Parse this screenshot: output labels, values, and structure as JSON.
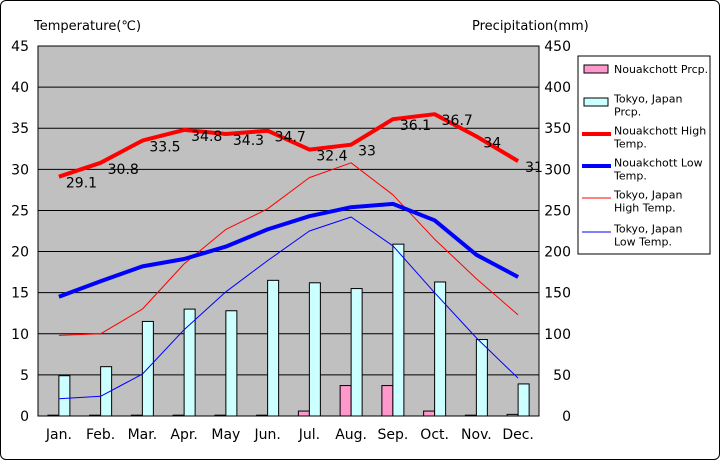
{
  "chart_data": {
    "type": "bar+line",
    "categories": [
      "Jan.",
      "Feb.",
      "Mar.",
      "Apr.",
      "May",
      "Jun.",
      "Jul.",
      "Aug.",
      "Sep.",
      "Oct.",
      "Nov.",
      "Dec."
    ],
    "ylabel_left": "Temperature(℃)",
    "ylabel_right": "Precipitation(mm)",
    "ylim_left": [
      0,
      45
    ],
    "ylim_right": [
      0,
      450
    ],
    "yticks_left": [
      "0",
      "5",
      "10",
      "15",
      "20",
      "25",
      "30",
      "35",
      "40",
      "45"
    ],
    "yticks_right": [
      "0",
      "50",
      "100",
      "150",
      "200",
      "250",
      "300",
      "350",
      "400",
      "450"
    ],
    "grid": true,
    "legend_position": "right",
    "bar_series": [
      {
        "name": "Nouakchott Prcp.",
        "axis": "right",
        "color": "#ff99cc",
        "values": [
          1,
          1,
          1,
          1,
          1,
          1,
          6,
          37,
          37,
          6,
          1,
          2
        ]
      },
      {
        "name": "Tokyo, Japan Prcp.",
        "axis": "right",
        "color": "#ccffff",
        "values": [
          49,
          60,
          115,
          130,
          128,
          165,
          162,
          155,
          209,
          163,
          93,
          39
        ]
      }
    ],
    "line_series": [
      {
        "name": "Nouakchott High Temp.",
        "axis": "left",
        "color": "#ff0000",
        "width": 4,
        "labeled": true,
        "values": [
          29.1,
          30.8,
          33.5,
          34.8,
          34.3,
          34.7,
          32.4,
          33,
          36.1,
          36.7,
          34,
          31
        ],
        "labels": [
          "29.1",
          "30.8",
          "33.5",
          "34.8",
          "34.3",
          "34.7",
          "32.4",
          "33",
          "36.1",
          "36.7",
          "34",
          "31"
        ]
      },
      {
        "name": "Nouakchott Low Temp.",
        "axis": "left",
        "color": "#0000ff",
        "width": 4,
        "labeled": false,
        "values": [
          14.5,
          16.4,
          18.2,
          19.1,
          20.6,
          22.7,
          24.3,
          25.4,
          25.8,
          23.8,
          19.6,
          16.9
        ]
      },
      {
        "name": "Tokyo, Japan High Temp.",
        "axis": "left",
        "color": "#ff0000",
        "width": 1,
        "labeled": false,
        "values": [
          9.8,
          10,
          13,
          18.5,
          22.7,
          25.2,
          29,
          30.8,
          26.9,
          21.5,
          16.7,
          12.3
        ]
      },
      {
        "name": "Tokyo, Japan Low Temp.",
        "axis": "left",
        "color": "#0000ff",
        "width": 1,
        "labeled": false,
        "values": [
          2.1,
          2.4,
          5.1,
          10.5,
          15.1,
          18.9,
          22.5,
          24.2,
          20.7,
          15,
          9.5,
          4.6
        ]
      }
    ],
    "legend": [
      {
        "text": [
          "Nouakchott Prcp."
        ],
        "kind": "bar",
        "color": "#ff99cc"
      },
      {
        "text": [
          "Tokyo, Japan",
          "Prcp."
        ],
        "kind": "bar",
        "color": "#ccffff"
      },
      {
        "text": [
          "Nouakchott High",
          "Temp."
        ],
        "kind": "line",
        "color": "#ff0000",
        "width": 4
      },
      {
        "text": [
          "Nouakchott Low",
          "Temp."
        ],
        "kind": "line",
        "color": "#0000ff",
        "width": 4
      },
      {
        "text": [
          "Tokyo, Japan",
          "High Temp."
        ],
        "kind": "line",
        "color": "#ff0000",
        "width": 1
      },
      {
        "text": [
          "Tokyo, Japan",
          "Low Temp."
        ],
        "kind": "line",
        "color": "#0000ff",
        "width": 1
      }
    ]
  }
}
